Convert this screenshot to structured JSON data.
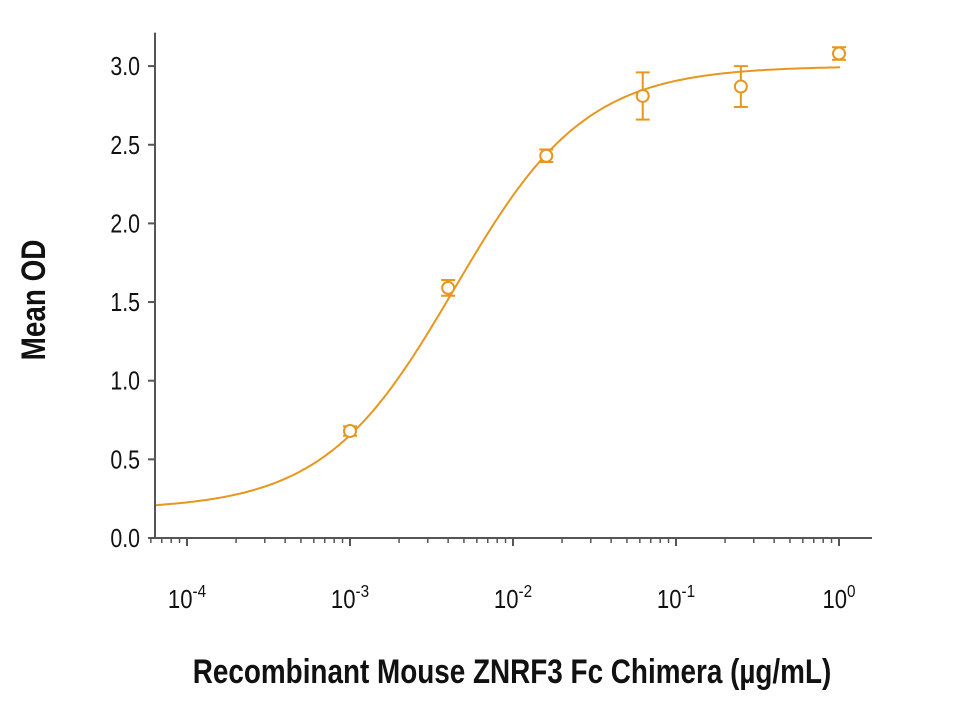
{
  "chart_data": {
    "type": "scatter",
    "title": "",
    "xlabel": "Recombinant Mouse ZNRF3 Fc Chimera (µg/mL)",
    "ylabel": "Mean OD",
    "xscale": "log",
    "xlim": [
      6.5e-05,
      1.5
    ],
    "ylim": [
      0,
      3.2
    ],
    "grid": false,
    "color": "#E8961E",
    "x_ticks": [
      {
        "value": 0.0001,
        "base": "10",
        "exp": "-4"
      },
      {
        "value": 0.001,
        "base": "10",
        "exp": "-3"
      },
      {
        "value": 0.01,
        "base": "10",
        "exp": "-2"
      },
      {
        "value": 0.1,
        "base": "10",
        "exp": "-1"
      },
      {
        "value": 1,
        "base": "10",
        "exp": "0"
      }
    ],
    "y_ticks": [
      "0.0",
      "0.5",
      "1.0",
      "1.5",
      "2.0",
      "2.5",
      "3.0"
    ],
    "series": [
      {
        "name": "Mean OD",
        "x": [
          0.001,
          0.004,
          0.016,
          0.0625,
          0.25,
          1
        ],
        "y": [
          0.68,
          1.59,
          2.43,
          2.81,
          2.87,
          3.08
        ],
        "error": [
          0.03,
          0.05,
          0.04,
          0.15,
          0.13,
          0.04
        ]
      }
    ],
    "fit": {
      "model": "4PL",
      "bottom": 0.18,
      "top": 3.0,
      "ec50": 0.0044,
      "hill": 1.08
    }
  }
}
